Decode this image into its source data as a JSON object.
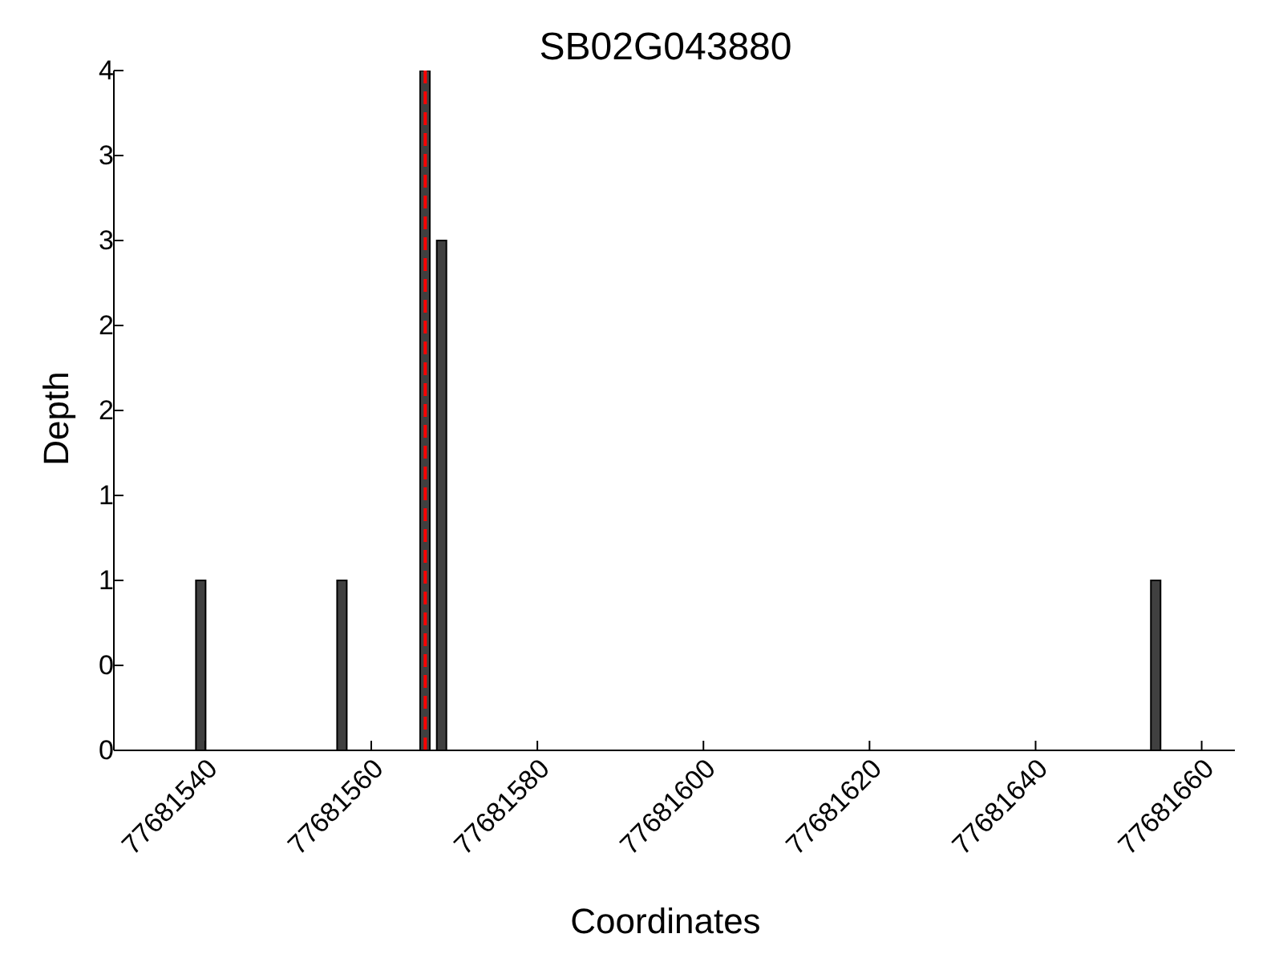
{
  "chart_data": {
    "type": "bar",
    "title": "SB02G043880",
    "xlabel": "Coordinates",
    "ylabel": "Depth",
    "x": [
      77681539.5,
      77681556.5,
      77681566.5,
      77681568.5,
      77681654.5
    ],
    "values": [
      1,
      1,
      4,
      3,
      1
    ],
    "color": "#404040",
    "xlim": [
      77681529,
      77681664
    ],
    "xticks": [
      77681540,
      77681560,
      77681580,
      77681600,
      77681620,
      77681640,
      77681660
    ],
    "ylim": [
      0,
      4
    ],
    "yticks": [
      0,
      {
        "value": 0.5,
        "label": "0"
      },
      1,
      {
        "value": 1.5,
        "label": "1"
      },
      2,
      {
        "value": 2.5,
        "label": "2"
      },
      3,
      {
        "value": 3.5,
        "label": "3"
      },
      4
    ],
    "ref_lines": [
      {
        "axis": "x",
        "value": 77681566.5,
        "color": "#ff0000",
        "line_style": "dashed"
      }
    ],
    "grid": false
  }
}
